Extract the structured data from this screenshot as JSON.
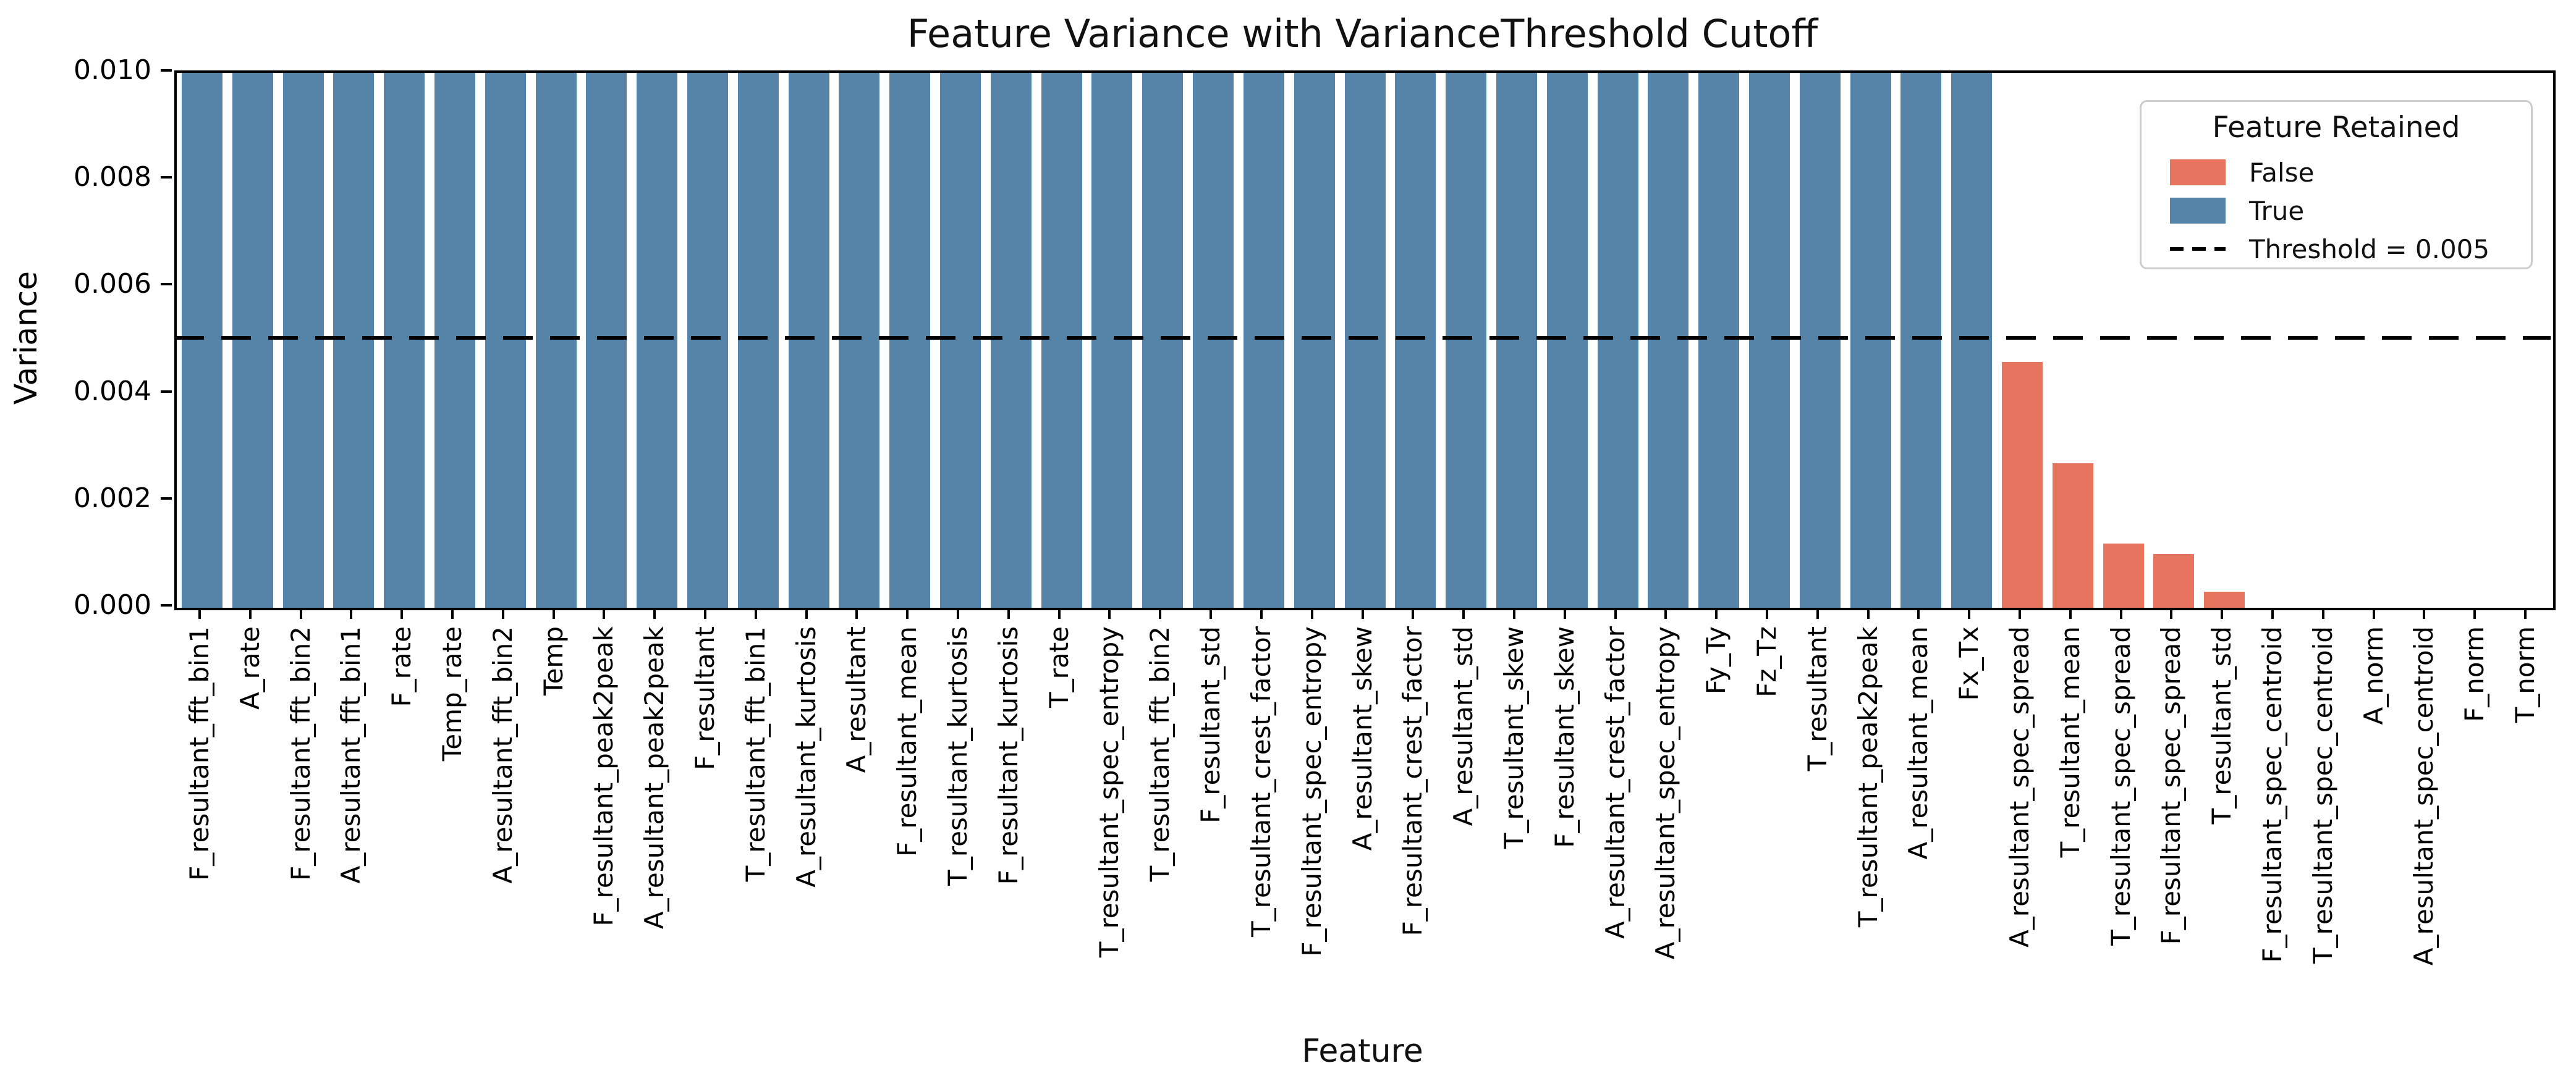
{
  "chart_data": {
    "type": "bar",
    "title": "Feature Variance with VarianceThreshold Cutoff",
    "xlabel": "Feature",
    "ylabel": "Variance",
    "ylim": [
      0,
      0.01
    ],
    "yticks": [
      "0.000",
      "0.002",
      "0.004",
      "0.006",
      "0.008",
      "0.010"
    ],
    "grid": false,
    "threshold": {
      "value": 0.005,
      "label": "Threshold = 0.005"
    },
    "colors": {
      "retained_true": "#5584A8",
      "retained_false": "#E7745E",
      "threshold_line": "#000000",
      "axis": "#000000",
      "legend_border": "#cccccc"
    },
    "legend": {
      "title": "Feature Retained",
      "position": "upper right",
      "entries": [
        {
          "label": "False",
          "swatch": "fill",
          "color": "#E7745E"
        },
        {
          "label": "True",
          "swatch": "fill",
          "color": "#5584A8"
        },
        {
          "label": "Threshold = 0.005",
          "swatch": "dash",
          "color": "#000000"
        }
      ]
    },
    "note": "Bars for retained (True) features meet or exceed the 0.010 y-axis limit and are clipped at the top of the axes.",
    "bars": [
      {
        "feature": "F_resultant_fft_bin1",
        "variance": 0.01,
        "retained": true
      },
      {
        "feature": "A_rate",
        "variance": 0.01,
        "retained": true
      },
      {
        "feature": "F_resultant_fft_bin2",
        "variance": 0.01,
        "retained": true
      },
      {
        "feature": "A_resultant_fft_bin1",
        "variance": 0.01,
        "retained": true
      },
      {
        "feature": "F_rate",
        "variance": 0.01,
        "retained": true
      },
      {
        "feature": "Temp_rate",
        "variance": 0.01,
        "retained": true
      },
      {
        "feature": "A_resultant_fft_bin2",
        "variance": 0.01,
        "retained": true
      },
      {
        "feature": "Temp",
        "variance": 0.01,
        "retained": true
      },
      {
        "feature": "F_resultant_peak2peak",
        "variance": 0.01,
        "retained": true
      },
      {
        "feature": "A_resultant_peak2peak",
        "variance": 0.01,
        "retained": true
      },
      {
        "feature": "F_resultant",
        "variance": 0.01,
        "retained": true
      },
      {
        "feature": "T_resultant_fft_bin1",
        "variance": 0.01,
        "retained": true
      },
      {
        "feature": "A_resultant_kurtosis",
        "variance": 0.01,
        "retained": true
      },
      {
        "feature": "A_resultant",
        "variance": 0.01,
        "retained": true
      },
      {
        "feature": "F_resultant_mean",
        "variance": 0.01,
        "retained": true
      },
      {
        "feature": "T_resultant_kurtosis",
        "variance": 0.01,
        "retained": true
      },
      {
        "feature": "F_resultant_kurtosis",
        "variance": 0.01,
        "retained": true
      },
      {
        "feature": "T_rate",
        "variance": 0.01,
        "retained": true
      },
      {
        "feature": "T_resultant_spec_entropy",
        "variance": 0.01,
        "retained": true
      },
      {
        "feature": "T_resultant_fft_bin2",
        "variance": 0.01,
        "retained": true
      },
      {
        "feature": "F_resultant_std",
        "variance": 0.01,
        "retained": true
      },
      {
        "feature": "T_resultant_crest_factor",
        "variance": 0.01,
        "retained": true
      },
      {
        "feature": "F_resultant_spec_entropy",
        "variance": 0.01,
        "retained": true
      },
      {
        "feature": "A_resultant_skew",
        "variance": 0.01,
        "retained": true
      },
      {
        "feature": "F_resultant_crest_factor",
        "variance": 0.01,
        "retained": true
      },
      {
        "feature": "A_resultant_std",
        "variance": 0.01,
        "retained": true
      },
      {
        "feature": "T_resultant_skew",
        "variance": 0.01,
        "retained": true
      },
      {
        "feature": "F_resultant_skew",
        "variance": 0.01,
        "retained": true
      },
      {
        "feature": "A_resultant_crest_factor",
        "variance": 0.01,
        "retained": true
      },
      {
        "feature": "A_resultant_spec_entropy",
        "variance": 0.01,
        "retained": true
      },
      {
        "feature": "Fy_Ty",
        "variance": 0.01,
        "retained": true
      },
      {
        "feature": "Fz_Tz",
        "variance": 0.01,
        "retained": true
      },
      {
        "feature": "T_resultant",
        "variance": 0.01,
        "retained": true
      },
      {
        "feature": "T_resultant_peak2peak",
        "variance": 0.01,
        "retained": true
      },
      {
        "feature": "A_resultant_mean",
        "variance": 0.01,
        "retained": true
      },
      {
        "feature": "Fx_Tx",
        "variance": 0.01,
        "retained": true
      },
      {
        "feature": "A_resultant_spec_spread",
        "variance": 0.0046,
        "retained": false
      },
      {
        "feature": "T_resultant_mean",
        "variance": 0.0027,
        "retained": false
      },
      {
        "feature": "T_resultant_spec_spread",
        "variance": 0.0012,
        "retained": false
      },
      {
        "feature": "F_resultant_spec_spread",
        "variance": 0.001,
        "retained": false
      },
      {
        "feature": "T_resultant_std",
        "variance": 0.0003,
        "retained": false
      },
      {
        "feature": "F_resultant_spec_centroid",
        "variance": 0.0,
        "retained": false
      },
      {
        "feature": "T_resultant_spec_centroid",
        "variance": 0.0,
        "retained": false
      },
      {
        "feature": "A_norm",
        "variance": 0.0,
        "retained": false
      },
      {
        "feature": "A_resultant_spec_centroid",
        "variance": 0.0,
        "retained": false
      },
      {
        "feature": "F_norm",
        "variance": 0.0,
        "retained": false
      },
      {
        "feature": "T_norm",
        "variance": 0.0,
        "retained": false
      }
    ]
  }
}
